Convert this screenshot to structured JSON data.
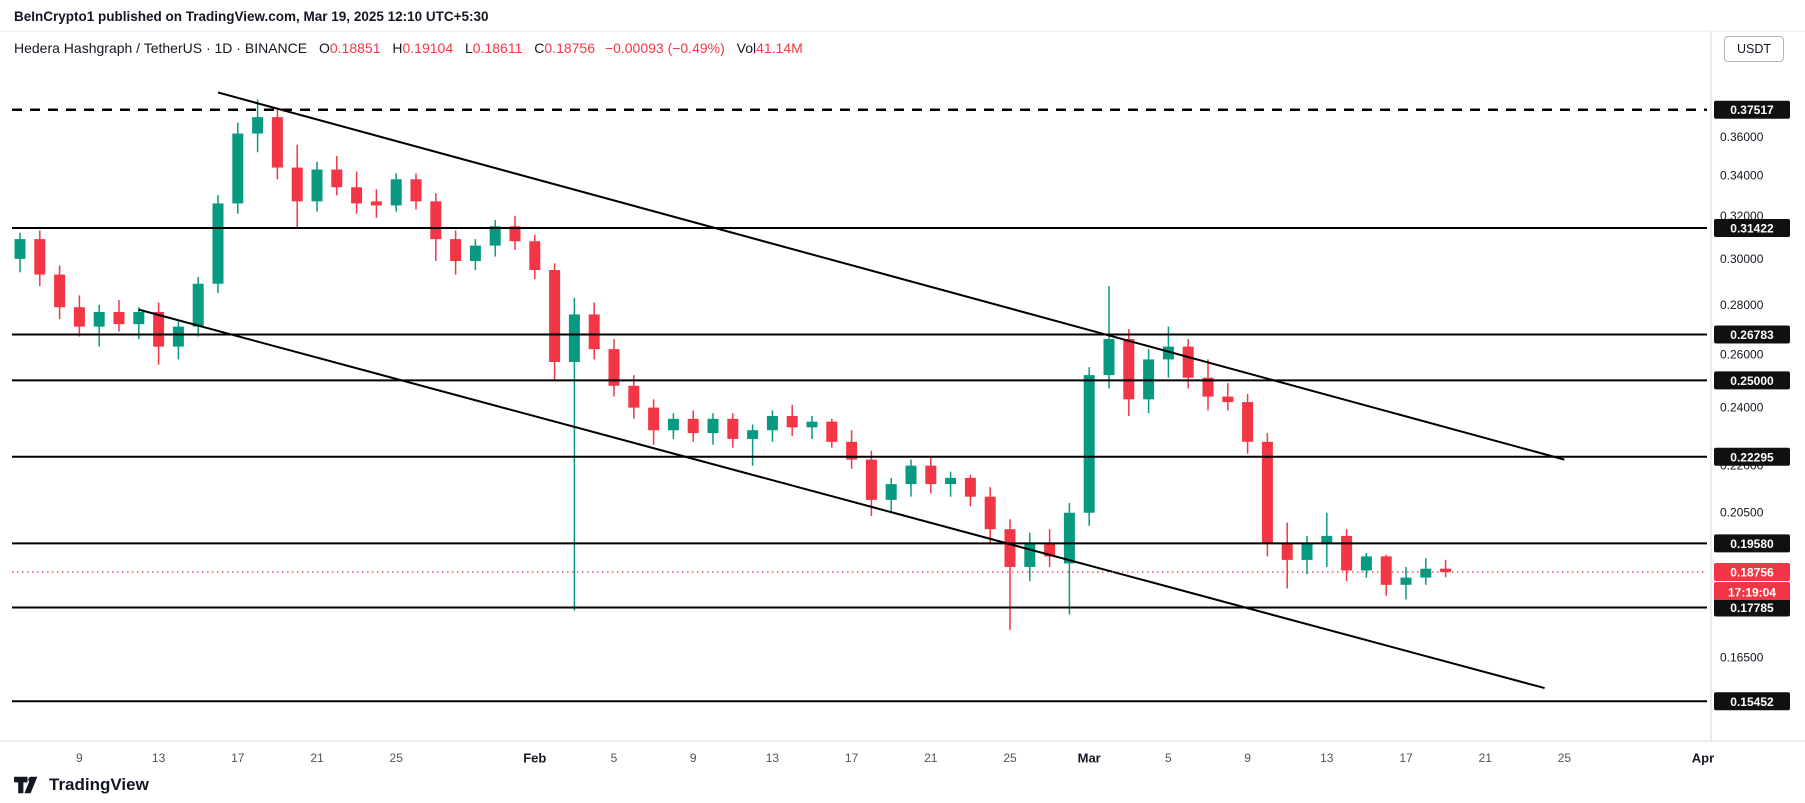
{
  "attribution": "BeInCrypto1 published on TradingView.com, Mar 19, 2025 12:10 UTC+5:30",
  "header": {
    "symbol_line": "Hedera Hashgraph / TetherUS · 1D · BINANCE",
    "ohlc": [
      {
        "label": "O",
        "value": "0.18851"
      },
      {
        "label": "H",
        "value": "0.19104"
      },
      {
        "label": "L",
        "value": "0.18611"
      },
      {
        "label": "C",
        "value": "0.18756"
      }
    ],
    "change": "−0.00093 (−0.49%)",
    "vol_label": "Vol",
    "vol_value": "41.14M",
    "currency_button": "USDT"
  },
  "footer": {
    "logo_text": "TradingView"
  },
  "chart_data": {
    "type": "candlestick",
    "title": "Hedera Hashgraph / TetherUS 1D BINANCE",
    "yscale": "log",
    "ylim": [
      0.148,
      0.403
    ],
    "colors": {
      "up": "#089981",
      "down": "#f23645",
      "level_line": "#000000",
      "trend_line": "#000000",
      "current_line": "#f23645",
      "badge_bg": "#101010",
      "badge_text": "#ffffff",
      "axis_text": "#131722",
      "day_tick_text": "#50535e"
    },
    "candles": [
      {
        "d": "Jan 6",
        "o": 0.3,
        "h": 0.312,
        "l": 0.294,
        "c": 0.309
      },
      {
        "d": "Jan 7",
        "o": 0.309,
        "h": 0.313,
        "l": 0.288,
        "c": 0.293
      },
      {
        "d": "Jan 8",
        "o": 0.293,
        "h": 0.297,
        "l": 0.274,
        "c": 0.279
      },
      {
        "d": "Jan 9",
        "o": 0.279,
        "h": 0.284,
        "l": 0.267,
        "c": 0.271
      },
      {
        "d": "Jan 10",
        "o": 0.271,
        "h": 0.28,
        "l": 0.263,
        "c": 0.277
      },
      {
        "d": "Jan 11",
        "o": 0.277,
        "h": 0.282,
        "l": 0.269,
        "c": 0.272
      },
      {
        "d": "Jan 12",
        "o": 0.272,
        "h": 0.279,
        "l": 0.266,
        "c": 0.277
      },
      {
        "d": "Jan 13",
        "o": 0.277,
        "h": 0.281,
        "l": 0.256,
        "c": 0.263
      },
      {
        "d": "Jan 14",
        "o": 0.263,
        "h": 0.273,
        "l": 0.258,
        "c": 0.271
      },
      {
        "d": "Jan 15",
        "o": 0.271,
        "h": 0.292,
        "l": 0.267,
        "c": 0.289
      },
      {
        "d": "Jan 16",
        "o": 0.289,
        "h": 0.33,
        "l": 0.285,
        "c": 0.326
      },
      {
        "d": "Jan 17",
        "o": 0.326,
        "h": 0.368,
        "l": 0.321,
        "c": 0.362
      },
      {
        "d": "Jan 18",
        "o": 0.362,
        "h": 0.381,
        "l": 0.352,
        "c": 0.371
      },
      {
        "d": "Jan 19",
        "o": 0.371,
        "h": 0.3755,
        "l": 0.338,
        "c": 0.344
      },
      {
        "d": "Jan 20",
        "o": 0.344,
        "h": 0.356,
        "l": 0.314,
        "c": 0.327
      },
      {
        "d": "Jan 21",
        "o": 0.327,
        "h": 0.347,
        "l": 0.322,
        "c": 0.343
      },
      {
        "d": "Jan 22",
        "o": 0.343,
        "h": 0.35,
        "l": 0.33,
        "c": 0.334
      },
      {
        "d": "Jan 23",
        "o": 0.334,
        "h": 0.342,
        "l": 0.321,
        "c": 0.326
      },
      {
        "d": "Jan 24",
        "o": 0.327,
        "h": 0.333,
        "l": 0.319,
        "c": 0.325
      },
      {
        "d": "Jan 25",
        "o": 0.325,
        "h": 0.341,
        "l": 0.322,
        "c": 0.338
      },
      {
        "d": "Jan 26",
        "o": 0.338,
        "h": 0.341,
        "l": 0.323,
        "c": 0.327
      },
      {
        "d": "Jan 27",
        "o": 0.327,
        "h": 0.331,
        "l": 0.299,
        "c": 0.309
      },
      {
        "d": "Jan 28",
        "o": 0.309,
        "h": 0.313,
        "l": 0.293,
        "c": 0.299
      },
      {
        "d": "Jan 29",
        "o": 0.299,
        "h": 0.309,
        "l": 0.295,
        "c": 0.306
      },
      {
        "d": "Jan 30",
        "o": 0.306,
        "h": 0.318,
        "l": 0.301,
        "c": 0.315
      },
      {
        "d": "Jan 31",
        "o": 0.315,
        "h": 0.32,
        "l": 0.304,
        "c": 0.308
      },
      {
        "d": "Feb 1",
        "o": 0.308,
        "h": 0.311,
        "l": 0.291,
        "c": 0.295
      },
      {
        "d": "Feb 2",
        "o": 0.295,
        "h": 0.298,
        "l": 0.25,
        "c": 0.257
      },
      {
        "d": "Feb 3",
        "o": 0.257,
        "h": 0.283,
        "l": 0.177,
        "c": 0.276
      },
      {
        "d": "Feb 4",
        "o": 0.276,
        "h": 0.281,
        "l": 0.258,
        "c": 0.262
      },
      {
        "d": "Feb 5",
        "o": 0.262,
        "h": 0.266,
        "l": 0.244,
        "c": 0.248
      },
      {
        "d": "Feb 6",
        "o": 0.248,
        "h": 0.252,
        "l": 0.236,
        "c": 0.24
      },
      {
        "d": "Feb 7",
        "o": 0.24,
        "h": 0.243,
        "l": 0.227,
        "c": 0.232
      },
      {
        "d": "Feb 8",
        "o": 0.232,
        "h": 0.238,
        "l": 0.229,
        "c": 0.236
      },
      {
        "d": "Feb 9",
        "o": 0.236,
        "h": 0.239,
        "l": 0.228,
        "c": 0.231
      },
      {
        "d": "Feb 10",
        "o": 0.231,
        "h": 0.238,
        "l": 0.227,
        "c": 0.236
      },
      {
        "d": "Feb 11",
        "o": 0.236,
        "h": 0.238,
        "l": 0.226,
        "c": 0.229
      },
      {
        "d": "Feb 12",
        "o": 0.229,
        "h": 0.234,
        "l": 0.22,
        "c": 0.232
      },
      {
        "d": "Feb 13",
        "o": 0.232,
        "h": 0.239,
        "l": 0.228,
        "c": 0.237
      },
      {
        "d": "Feb 14",
        "o": 0.237,
        "h": 0.241,
        "l": 0.23,
        "c": 0.233
      },
      {
        "d": "Feb 15",
        "o": 0.233,
        "h": 0.237,
        "l": 0.229,
        "c": 0.235
      },
      {
        "d": "Feb 16",
        "o": 0.235,
        "h": 0.236,
        "l": 0.226,
        "c": 0.228
      },
      {
        "d": "Feb 17",
        "o": 0.228,
        "h": 0.232,
        "l": 0.219,
        "c": 0.222
      },
      {
        "d": "Feb 18",
        "o": 0.222,
        "h": 0.225,
        "l": 0.204,
        "c": 0.209
      },
      {
        "d": "Feb 19",
        "o": 0.209,
        "h": 0.216,
        "l": 0.205,
        "c": 0.214
      },
      {
        "d": "Feb 20",
        "o": 0.214,
        "h": 0.222,
        "l": 0.21,
        "c": 0.22
      },
      {
        "d": "Feb 21",
        "o": 0.22,
        "h": 0.2225,
        "l": 0.211,
        "c": 0.214
      },
      {
        "d": "Feb 22",
        "o": 0.214,
        "h": 0.218,
        "l": 0.21,
        "c": 0.216
      },
      {
        "d": "Feb 23",
        "o": 0.216,
        "h": 0.217,
        "l": 0.207,
        "c": 0.21
      },
      {
        "d": "Feb 24",
        "o": 0.21,
        "h": 0.213,
        "l": 0.196,
        "c": 0.2
      },
      {
        "d": "Feb 25",
        "o": 0.2,
        "h": 0.203,
        "l": 0.172,
        "c": 0.189
      },
      {
        "d": "Feb 26",
        "o": 0.189,
        "h": 0.199,
        "l": 0.185,
        "c": 0.196
      },
      {
        "d": "Feb 27",
        "o": 0.196,
        "h": 0.2,
        "l": 0.189,
        "c": 0.192
      },
      {
        "d": "Feb 28",
        "o": 0.19,
        "h": 0.208,
        "l": 0.176,
        "c": 0.205
      },
      {
        "d": "Mar 1",
        "o": 0.205,
        "h": 0.255,
        "l": 0.201,
        "c": 0.252
      },
      {
        "d": "Mar 2",
        "o": 0.252,
        "h": 0.288,
        "l": 0.247,
        "c": 0.266
      },
      {
        "d": "Mar 3",
        "o": 0.266,
        "h": 0.27,
        "l": 0.237,
        "c": 0.243
      },
      {
        "d": "Mar 4",
        "o": 0.243,
        "h": 0.262,
        "l": 0.238,
        "c": 0.258
      },
      {
        "d": "Mar 5",
        "o": 0.258,
        "h": 0.271,
        "l": 0.251,
        "c": 0.263
      },
      {
        "d": "Mar 6",
        "o": 0.263,
        "h": 0.266,
        "l": 0.247,
        "c": 0.251
      },
      {
        "d": "Mar 7",
        "o": 0.251,
        "h": 0.258,
        "l": 0.239,
        "c": 0.244
      },
      {
        "d": "Mar 8",
        "o": 0.244,
        "h": 0.249,
        "l": 0.239,
        "c": 0.242
      },
      {
        "d": "Mar 9",
        "o": 0.242,
        "h": 0.245,
        "l": 0.224,
        "c": 0.228
      },
      {
        "d": "Mar 10",
        "o": 0.228,
        "h": 0.231,
        "l": 0.192,
        "c": 0.196
      },
      {
        "d": "Mar 11",
        "o": 0.196,
        "h": 0.202,
        "l": 0.183,
        "c": 0.191
      },
      {
        "d": "Mar 12",
        "o": 0.191,
        "h": 0.198,
        "l": 0.187,
        "c": 0.196
      },
      {
        "d": "Mar 13",
        "o": 0.196,
        "h": 0.205,
        "l": 0.189,
        "c": 0.198
      },
      {
        "d": "Mar 14",
        "o": 0.198,
        "h": 0.2,
        "l": 0.185,
        "c": 0.188
      },
      {
        "d": "Mar 15",
        "o": 0.188,
        "h": 0.193,
        "l": 0.186,
        "c": 0.192
      },
      {
        "d": "Mar 16",
        "o": 0.192,
        "h": 0.1925,
        "l": 0.181,
        "c": 0.184
      },
      {
        "d": "Mar 17",
        "o": 0.184,
        "h": 0.189,
        "l": 0.18,
        "c": 0.186
      },
      {
        "d": "Mar 18",
        "o": 0.186,
        "h": 0.1915,
        "l": 0.184,
        "c": 0.1885
      },
      {
        "d": "Mar 19",
        "o": 0.18851,
        "h": 0.19104,
        "l": 0.18611,
        "c": 0.18756
      }
    ],
    "x_ticks": [
      {
        "i": 3,
        "label": "9"
      },
      {
        "i": 7,
        "label": "13"
      },
      {
        "i": 11,
        "label": "17"
      },
      {
        "i": 15,
        "label": "21"
      },
      {
        "i": 19,
        "label": "25"
      },
      {
        "i": 26,
        "label": "Feb",
        "month": true
      },
      {
        "i": 30,
        "label": "5"
      },
      {
        "i": 34,
        "label": "9"
      },
      {
        "i": 38,
        "label": "13"
      },
      {
        "i": 42,
        "label": "17"
      },
      {
        "i": 46,
        "label": "21"
      },
      {
        "i": 50,
        "label": "25"
      },
      {
        "i": 54,
        "label": "Mar",
        "month": true
      },
      {
        "i": 58,
        "label": "5"
      },
      {
        "i": 62,
        "label": "9"
      },
      {
        "i": 66,
        "label": "13"
      },
      {
        "i": 70,
        "label": "17"
      },
      {
        "i": 74,
        "label": "21"
      },
      {
        "i": 78,
        "label": "25"
      },
      {
        "i": 85,
        "label": "Apr",
        "month": true
      }
    ],
    "y_ticks": [
      "0.36000",
      "0.34000",
      "0.32000",
      "0.30000",
      "0.28000",
      "0.26000",
      "0.24000",
      "0.22000",
      "0.20500",
      "0.16500"
    ],
    "hlines": [
      {
        "price": 0.37517,
        "label": "0.37517",
        "style": "dashed"
      },
      {
        "price": 0.31422,
        "label": "0.31422",
        "style": "solid"
      },
      {
        "price": 0.26783,
        "label": "0.26783",
        "style": "solid"
      },
      {
        "price": 0.25,
        "label": "0.25000",
        "style": "solid"
      },
      {
        "price": 0.22295,
        "label": "0.22295",
        "style": "solid"
      },
      {
        "price": 0.1958,
        "label": "0.19580",
        "style": "solid"
      },
      {
        "price": 0.17785,
        "label": "0.17785",
        "style": "solid"
      },
      {
        "price": 0.15452,
        "label": "0.15452",
        "style": "solid"
      }
    ],
    "trendlines": [
      {
        "i1": 10,
        "p1": 0.385,
        "i2": 78,
        "p2": 0.222
      },
      {
        "i1": 6,
        "p1": 0.278,
        "i2": 77,
        "p2": 0.1576
      }
    ],
    "current_price": {
      "price": 0.18756,
      "label": "0.18756",
      "countdown": "17:19:04"
    }
  }
}
